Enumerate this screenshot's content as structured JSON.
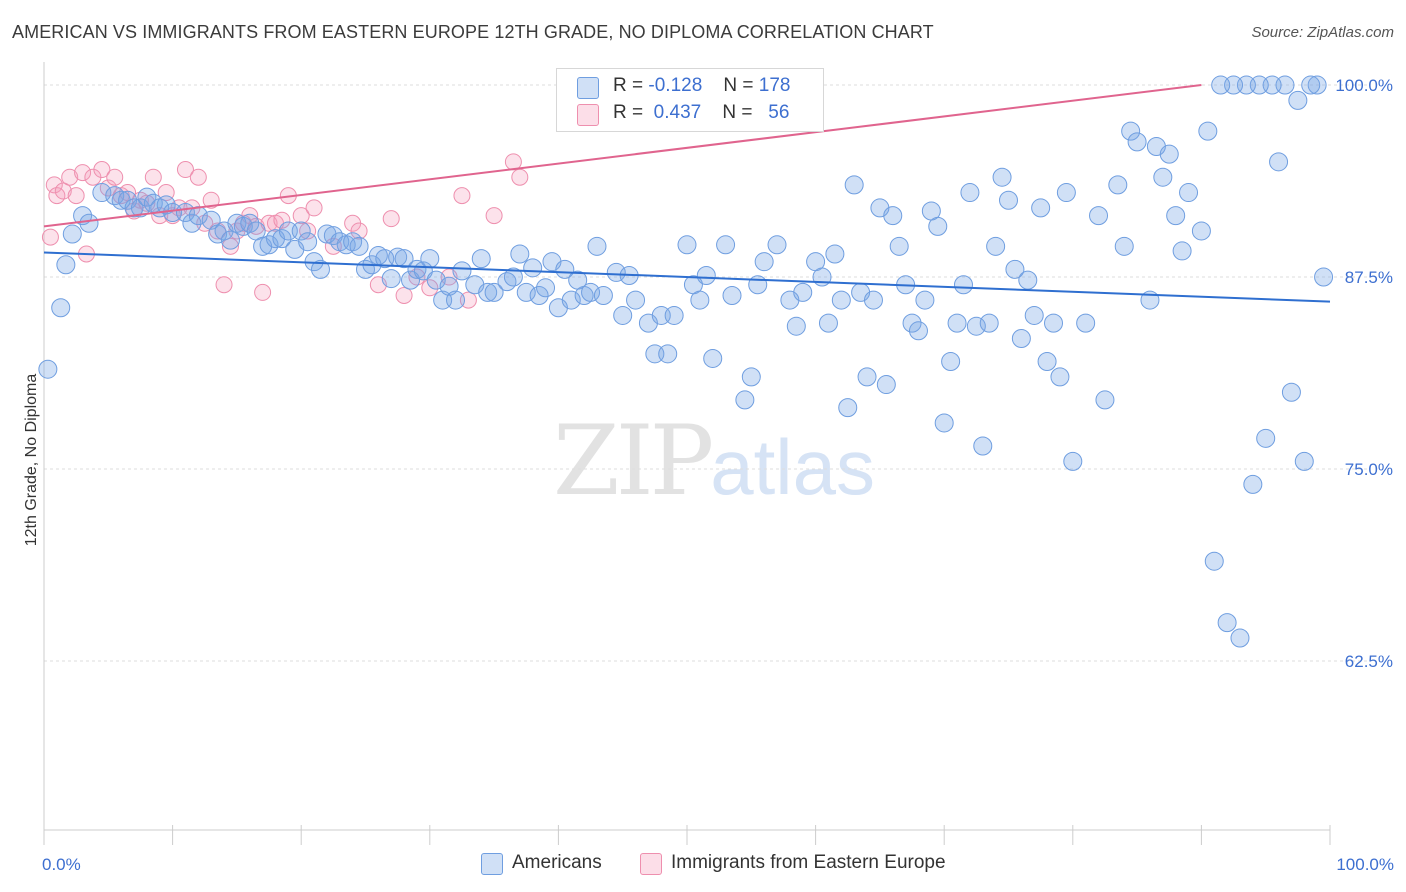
{
  "title": "AMERICAN VS IMMIGRANTS FROM EASTERN EUROPE 12TH GRADE, NO DIPLOMA CORRELATION CHART",
  "source": "Source: ZipAtlas.com",
  "watermark": {
    "zip": "ZIP",
    "atlas": "atlas"
  },
  "colors": {
    "blue": "#6f9ee0",
    "blue_fill": "rgba(120,165,230,0.35)",
    "blue_line": "#2f6fd0",
    "pink": "#ee8fae",
    "pink_fill": "rgba(245,160,190,0.30)",
    "pink_line": "#e0648e",
    "grid": "#dddddd",
    "tick_text": "#3d6fd0"
  },
  "legend": {
    "rows": [
      {
        "r_label": "R =",
        "r_value": "-0.128",
        "n_label": "N =",
        "n_value": "178"
      },
      {
        "r_label": "R =",
        "r_value": "0.437",
        "n_label": "N =",
        "n_value": "56"
      }
    ]
  },
  "bottom_legend": {
    "americans": "Americans",
    "immigrants": "Immigrants from Eastern Europe"
  },
  "chart_data": {
    "type": "scatter",
    "title": "AMERICAN VS IMMIGRANTS FROM EASTERN EUROPE 12TH GRADE, NO DIPLOMA CORRELATION CHART",
    "xlabel": "",
    "ylabel": "12th Grade, No Diploma",
    "xlim": [
      0,
      100
    ],
    "ylim": [
      51.5,
      101.5
    ],
    "x_tick_labels": [
      "0.0%",
      "100.0%"
    ],
    "y_ticks": [
      100.0,
      87.5,
      75.0,
      62.5
    ],
    "y_tick_labels": [
      "100.0%",
      "87.5%",
      "75.0%",
      "62.5%"
    ],
    "grid": true,
    "legend_position": "top-center",
    "series": [
      {
        "name": "Americans",
        "trend": {
          "x": [
            0,
            100
          ],
          "y": [
            89.1,
            85.9
          ]
        },
        "points": [
          [
            0.3,
            81.5
          ],
          [
            1.3,
            85.5
          ],
          [
            1.7,
            88.3
          ],
          [
            2.2,
            90.3
          ],
          [
            3.0,
            91.5
          ],
          [
            3.5,
            91.0
          ],
          [
            4.5,
            93.0
          ],
          [
            5.5,
            92.8
          ],
          [
            6.0,
            92.5
          ],
          [
            6.5,
            92.5
          ],
          [
            7.0,
            92.0
          ],
          [
            7.5,
            92.0
          ],
          [
            8.0,
            92.7
          ],
          [
            8.5,
            92.3
          ],
          [
            9.0,
            92.0
          ],
          [
            9.5,
            92.2
          ],
          [
            10.0,
            91.7
          ],
          [
            11.0,
            91.7
          ],
          [
            11.5,
            91.0
          ],
          [
            12.0,
            91.5
          ],
          [
            13.0,
            91.2
          ],
          [
            13.5,
            90.3
          ],
          [
            14.0,
            90.5
          ],
          [
            14.5,
            89.9
          ],
          [
            15.0,
            91.0
          ],
          [
            15.5,
            90.8
          ],
          [
            16.0,
            91.0
          ],
          [
            16.5,
            90.5
          ],
          [
            17.0,
            89.5
          ],
          [
            17.5,
            89.6
          ],
          [
            18.0,
            90.0
          ],
          [
            18.5,
            90.0
          ],
          [
            19.0,
            90.5
          ],
          [
            19.5,
            89.3
          ],
          [
            20.0,
            90.5
          ],
          [
            20.5,
            89.8
          ],
          [
            21.0,
            88.5
          ],
          [
            21.5,
            88.0
          ],
          [
            22.0,
            90.3
          ],
          [
            22.5,
            90.2
          ],
          [
            23.0,
            89.8
          ],
          [
            23.5,
            89.6
          ],
          [
            24.0,
            89.8
          ],
          [
            24.5,
            89.5
          ],
          [
            25.0,
            88.0
          ],
          [
            25.5,
            88.3
          ],
          [
            26.0,
            88.9
          ],
          [
            26.5,
            88.7
          ],
          [
            27.0,
            87.4
          ],
          [
            27.5,
            88.8
          ],
          [
            28.0,
            88.7
          ],
          [
            28.5,
            87.3
          ],
          [
            29.0,
            88.0
          ],
          [
            29.5,
            87.9
          ],
          [
            30.0,
            88.7
          ],
          [
            30.5,
            87.3
          ],
          [
            31.0,
            86.0
          ],
          [
            31.5,
            86.9
          ],
          [
            32.0,
            86.0
          ],
          [
            32.5,
            87.9
          ],
          [
            33.5,
            87.0
          ],
          [
            34.0,
            88.7
          ],
          [
            34.5,
            86.5
          ],
          [
            35.0,
            86.5
          ],
          [
            36.0,
            87.2
          ],
          [
            36.5,
            87.5
          ],
          [
            37.0,
            89.0
          ],
          [
            37.5,
            86.5
          ],
          [
            38.0,
            88.1
          ],
          [
            38.5,
            86.3
          ],
          [
            39.0,
            86.8
          ],
          [
            39.5,
            88.5
          ],
          [
            40.0,
            85.5
          ],
          [
            40.5,
            88.0
          ],
          [
            41.0,
            86.0
          ],
          [
            41.5,
            87.3
          ],
          [
            42.0,
            86.3
          ],
          [
            42.5,
            86.5
          ],
          [
            43.0,
            89.5
          ],
          [
            43.5,
            86.3
          ],
          [
            44.5,
            87.8
          ],
          [
            45.0,
            85.0
          ],
          [
            45.5,
            87.6
          ],
          [
            46.0,
            86.0
          ],
          [
            47.0,
            84.5
          ],
          [
            47.5,
            82.5
          ],
          [
            48.0,
            85.0
          ],
          [
            48.5,
            82.5
          ],
          [
            49.0,
            85.0
          ],
          [
            50.0,
            89.6
          ],
          [
            50.5,
            87.0
          ],
          [
            51.0,
            86.0
          ],
          [
            51.5,
            87.6
          ],
          [
            52.0,
            82.2
          ],
          [
            53.0,
            89.6
          ],
          [
            53.5,
            86.3
          ],
          [
            54.5,
            79.5
          ],
          [
            55.0,
            81.0
          ],
          [
            55.5,
            87.0
          ],
          [
            56.0,
            88.5
          ],
          [
            57.0,
            89.6
          ],
          [
            58.0,
            86.0
          ],
          [
            58.5,
            84.3
          ],
          [
            59.0,
            86.5
          ],
          [
            60.0,
            88.5
          ],
          [
            60.5,
            87.5
          ],
          [
            61.0,
            84.5
          ],
          [
            61.5,
            89.0
          ],
          [
            62.0,
            86.0
          ],
          [
            62.5,
            79.0
          ],
          [
            63.0,
            93.5
          ],
          [
            63.5,
            86.5
          ],
          [
            64.0,
            81.0
          ],
          [
            64.5,
            86.0
          ],
          [
            65.0,
            92.0
          ],
          [
            65.5,
            80.5
          ],
          [
            66.0,
            91.5
          ],
          [
            66.5,
            89.5
          ],
          [
            67.0,
            87.0
          ],
          [
            67.5,
            84.5
          ],
          [
            68.0,
            84.0
          ],
          [
            68.5,
            86.0
          ],
          [
            69.0,
            91.8
          ],
          [
            69.5,
            90.8
          ],
          [
            70.0,
            78.0
          ],
          [
            70.5,
            82.0
          ],
          [
            71.0,
            84.5
          ],
          [
            71.5,
            87.0
          ],
          [
            72.0,
            93.0
          ],
          [
            72.5,
            84.3
          ],
          [
            73.0,
            76.5
          ],
          [
            73.5,
            84.5
          ],
          [
            74.0,
            89.5
          ],
          [
            74.5,
            94.0
          ],
          [
            75.0,
            92.5
          ],
          [
            75.5,
            88.0
          ],
          [
            76.0,
            83.5
          ],
          [
            76.5,
            87.3
          ],
          [
            77.0,
            85.0
          ],
          [
            77.5,
            92.0
          ],
          [
            78.0,
            82.0
          ],
          [
            78.5,
            84.5
          ],
          [
            79.0,
            81.0
          ],
          [
            79.5,
            93.0
          ],
          [
            80.0,
            75.5
          ],
          [
            81.0,
            84.5
          ],
          [
            82.0,
            91.5
          ],
          [
            82.5,
            79.5
          ],
          [
            83.5,
            93.5
          ],
          [
            84.0,
            89.5
          ],
          [
            84.5,
            97.0
          ],
          [
            85.0,
            96.3
          ],
          [
            86.0,
            86.0
          ],
          [
            86.5,
            96.0
          ],
          [
            87.0,
            94.0
          ],
          [
            87.5,
            95.5
          ],
          [
            88.0,
            91.5
          ],
          [
            88.5,
            89.2
          ],
          [
            89.0,
            93.0
          ],
          [
            90.0,
            90.5
          ],
          [
            90.5,
            97.0
          ],
          [
            91.0,
            69.0
          ],
          [
            92.0,
            65.0
          ],
          [
            93.0,
            64.0
          ],
          [
            94.0,
            74.0
          ],
          [
            95.0,
            77.0
          ],
          [
            96.0,
            95.0
          ],
          [
            97.0,
            80.0
          ],
          [
            98.0,
            75.5
          ],
          [
            99.5,
            87.5
          ],
          [
            99.0,
            100.0
          ],
          [
            98.5,
            100.0
          ],
          [
            97.5,
            99.0
          ],
          [
            96.5,
            100.0
          ],
          [
            95.5,
            100.0
          ],
          [
            94.5,
            100.0
          ],
          [
            93.5,
            100.0
          ],
          [
            92.5,
            100.0
          ],
          [
            91.5,
            100.0
          ]
        ]
      },
      {
        "name": "Immigrants from Eastern Europe",
        "trend": {
          "x": [
            0,
            90
          ],
          "y": [
            90.8,
            100.0
          ]
        },
        "points": [
          [
            0.5,
            90.1
          ],
          [
            0.8,
            93.5
          ],
          [
            1.0,
            92.8
          ],
          [
            1.5,
            93.1
          ],
          [
            2.0,
            94.0
          ],
          [
            2.5,
            92.8
          ],
          [
            3.0,
            94.3
          ],
          [
            3.3,
            89.0
          ],
          [
            3.8,
            94.0
          ],
          [
            4.5,
            94.5
          ],
          [
            5.0,
            93.3
          ],
          [
            5.5,
            94.0
          ],
          [
            6.0,
            92.8
          ],
          [
            6.5,
            93.0
          ],
          [
            7.0,
            91.8
          ],
          [
            7.5,
            92.5
          ],
          [
            8.0,
            92.3
          ],
          [
            8.5,
            94.0
          ],
          [
            9.0,
            91.5
          ],
          [
            9.5,
            93.0
          ],
          [
            10.0,
            91.5
          ],
          [
            10.5,
            92.0
          ],
          [
            11.0,
            94.5
          ],
          [
            11.5,
            92.0
          ],
          [
            12.0,
            94.0
          ],
          [
            12.5,
            91.0
          ],
          [
            13.0,
            92.5
          ],
          [
            13.5,
            90.5
          ],
          [
            14.0,
            87.0
          ],
          [
            14.5,
            89.5
          ],
          [
            15.0,
            90.5
          ],
          [
            15.5,
            91.0
          ],
          [
            16.0,
            91.5
          ],
          [
            16.5,
            90.8
          ],
          [
            17.0,
            86.5
          ],
          [
            17.5,
            91.0
          ],
          [
            18.0,
            91.0
          ],
          [
            18.5,
            91.2
          ],
          [
            19.0,
            92.8
          ],
          [
            20.0,
            91.5
          ],
          [
            20.5,
            90.5
          ],
          [
            21.0,
            92.0
          ],
          [
            22.5,
            89.5
          ],
          [
            24.0,
            91.0
          ],
          [
            24.5,
            90.5
          ],
          [
            26.0,
            87.0
          ],
          [
            27.0,
            91.3
          ],
          [
            28.0,
            86.3
          ],
          [
            29.0,
            87.5
          ],
          [
            30.0,
            86.8
          ],
          [
            31.5,
            87.5
          ],
          [
            32.5,
            92.8
          ],
          [
            33.0,
            86.0
          ],
          [
            35.0,
            91.5
          ],
          [
            36.5,
            95.0
          ],
          [
            37.0,
            94.0
          ]
        ]
      }
    ]
  }
}
